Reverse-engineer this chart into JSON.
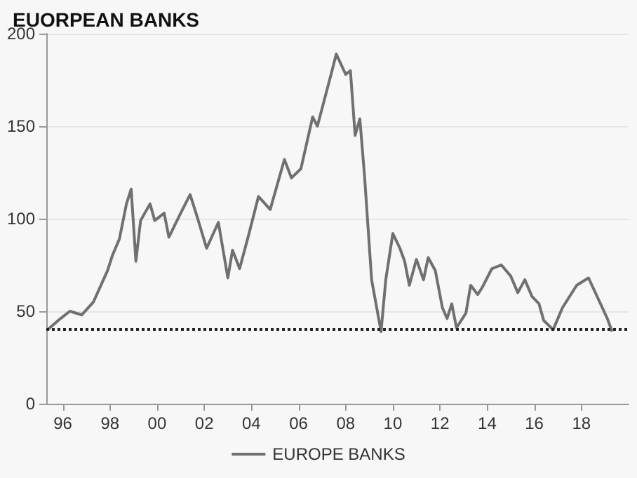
{
  "chart_data": {
    "type": "line",
    "title": "EUORPEAN BANKS",
    "x": [
      1995.35,
      1995.9,
      1996.3,
      1996.8,
      1997.3,
      1997.9,
      1998.1,
      1998.4,
      1998.7,
      1998.9,
      1999.1,
      1999.3,
      1999.7,
      1999.9,
      2000.3,
      2000.5,
      2001.0,
      2001.4,
      2001.7,
      2002.1,
      2002.6,
      2003.0,
      2003.2,
      2003.5,
      2003.9,
      2004.3,
      2004.8,
      2005.4,
      2005.7,
      2006.1,
      2006.6,
      2006.8,
      2007.4,
      2007.6,
      2008.0,
      2008.2,
      2008.4,
      2008.6,
      2008.8,
      2009.1,
      2009.5,
      2009.7,
      2010.0,
      2010.3,
      2010.5,
      2010.7,
      2011.0,
      2011.3,
      2011.5,
      2011.8,
      2012.1,
      2012.3,
      2012.5,
      2012.7,
      2013.1,
      2013.3,
      2013.6,
      2013.8,
      2014.2,
      2014.6,
      2015.0,
      2015.3,
      2015.6,
      2015.9,
      2016.2,
      2016.4,
      2016.8,
      2017.2,
      2017.8,
      2018.3,
      2018.7,
      2019.1,
      2019.3
    ],
    "series": [
      {
        "name": "EUROPE BANKS",
        "color": "#707070",
        "values": [
          40,
          46,
          50,
          48,
          55,
          72,
          80,
          89,
          108,
          116,
          77,
          99,
          108,
          99,
          103,
          90,
          103,
          113,
          101,
          84,
          98,
          68,
          83,
          73,
          92,
          112,
          105,
          132,
          122,
          127,
          155,
          150,
          179,
          189,
          178,
          180,
          145,
          154,
          123,
          67,
          39,
          67,
          92,
          84,
          77,
          64,
          78,
          67,
          79,
          72,
          52,
          46,
          54,
          41,
          49,
          64,
          59,
          63,
          73,
          75,
          69,
          60,
          67,
          58,
          54,
          45,
          40,
          52,
          64,
          68,
          57,
          46,
          39
        ]
      }
    ],
    "xlim": [
      1995.3,
      2020
    ],
    "xticks": [
      {
        "value": 1996,
        "label": "96"
      },
      {
        "value": 1998,
        "label": "98"
      },
      {
        "value": 2000,
        "label": "00"
      },
      {
        "value": 2002,
        "label": "02"
      },
      {
        "value": 2004,
        "label": "04"
      },
      {
        "value": 2006,
        "label": "06"
      },
      {
        "value": 2008,
        "label": "08"
      },
      {
        "value": 2010,
        "label": "10"
      },
      {
        "value": 2012,
        "label": "12"
      },
      {
        "value": 2014,
        "label": "14"
      },
      {
        "value": 2016,
        "label": "16"
      },
      {
        "value": 2018,
        "label": "18"
      }
    ],
    "ylim": [
      0,
      200
    ],
    "yticks": [
      0,
      50,
      100,
      150,
      200
    ],
    "grid": "y",
    "legend": "bottom",
    "marker": "none",
    "line_style": "solid",
    "ref_lines": [
      {
        "axis": "y",
        "value": 40,
        "color": "#222222",
        "line_style": "dotted"
      }
    ]
  }
}
